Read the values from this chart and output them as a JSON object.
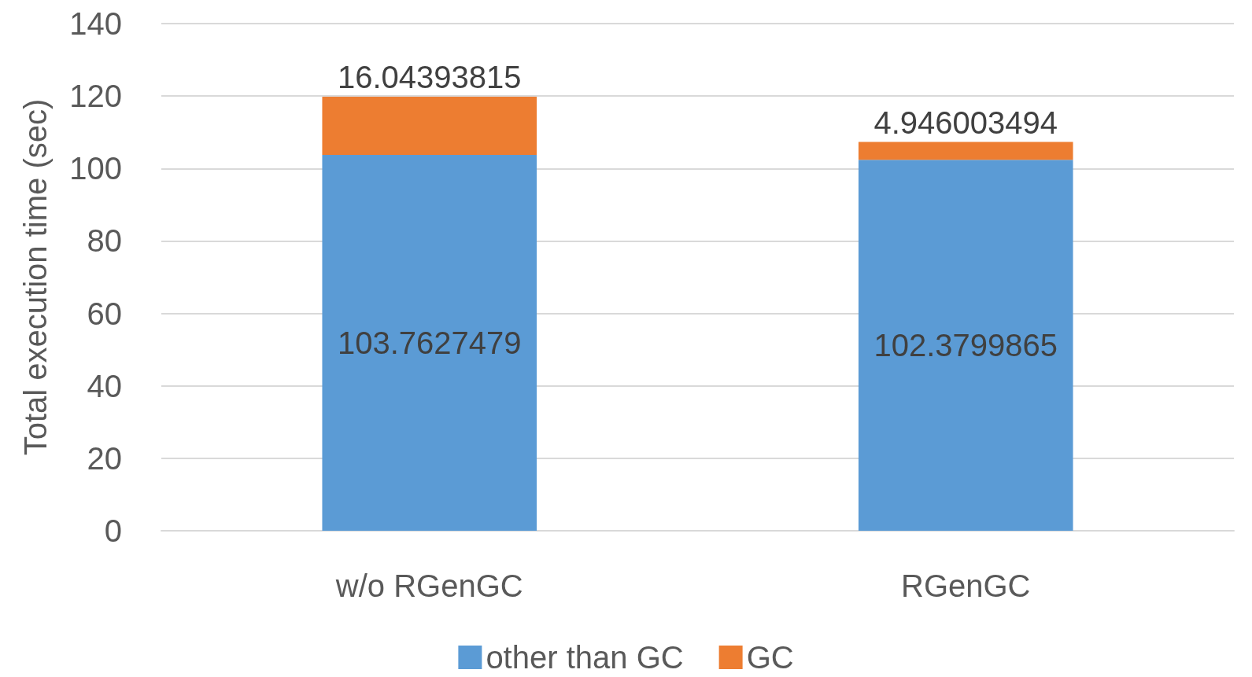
{
  "chart_data": {
    "type": "bar",
    "stacked": true,
    "ylabel": "Total execution time (sec)",
    "categories": [
      "w/o RGenGC",
      "RGenGC"
    ],
    "series": [
      {
        "name": "other than GC",
        "color": "#5b9bd5",
        "values": [
          103.7627479,
          102.3799865
        ]
      },
      {
        "name": "GC",
        "color": "#ed7d31",
        "values": [
          16.04393815,
          4.946003494
        ]
      }
    ],
    "ylim": [
      0,
      140
    ],
    "yticks": [
      0,
      20,
      40,
      60,
      80,
      100,
      120,
      140
    ],
    "grid": "y",
    "legend": "bottom",
    "data_labels": true
  }
}
